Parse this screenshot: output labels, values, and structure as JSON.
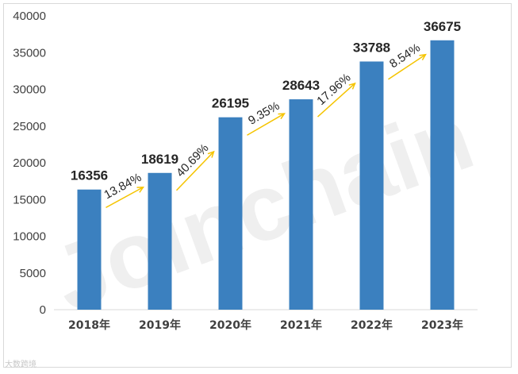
{
  "chart_data": {
    "type": "bar",
    "categories": [
      "2018年",
      "2019年",
      "2020年",
      "2021年",
      "2022年",
      "2023年"
    ],
    "values": [
      16356,
      18619,
      26195,
      28643,
      33788,
      36675
    ],
    "growth_labels": [
      "13.84%",
      "40.69%",
      "9.35%",
      "17.96%",
      "8.54%"
    ],
    "ylim": [
      0,
      40000
    ],
    "yticks": [
      0,
      5000,
      10000,
      15000,
      20000,
      25000,
      30000,
      35000,
      40000
    ],
    "title": "",
    "xlabel": "",
    "ylabel": "",
    "grid": false,
    "bar_color": "#3b80bf",
    "arrow_color": "#f5c400"
  },
  "watermark": {
    "text": "Joinchain",
    "reg": "®"
  },
  "source_tag": "大数跨境"
}
